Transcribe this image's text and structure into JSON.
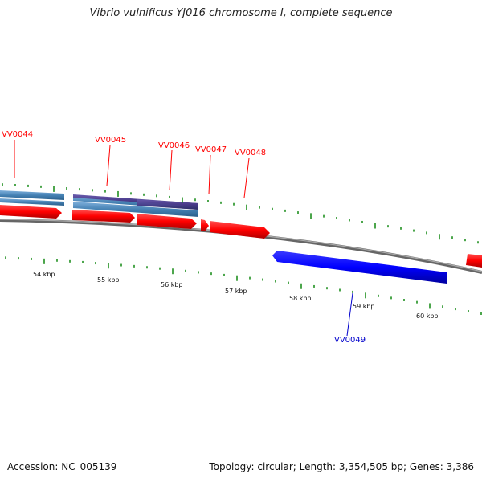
{
  "title": "Vibrio vulnificus YJ016 chromosome I, complete sequence",
  "footer": {
    "accession": "Accession: NC_005139",
    "summary": "Topology: circular; Length: 3,354,505 bp; Genes: 3,386"
  },
  "colors": {
    "forward_cds": "#ff0000",
    "reverse_cds": "#0000ff",
    "blue_feature": "#4682b4",
    "purple_feature": "#4b3c8c",
    "backbone": "#888888",
    "ticks": "#008000",
    "forward_label": "#ff0000",
    "reverse_label": "#0000cc"
  },
  "scale_labels": [
    "54 kbp",
    "55 kbp",
    "56 kbp",
    "57 kbp",
    "58 kbp",
    "59 kbp",
    "60 kbp"
  ],
  "genes": [
    {
      "label": "VV0044",
      "strand": "forward"
    },
    {
      "label": "VV0045",
      "strand": "forward"
    },
    {
      "label": "VV0046",
      "strand": "forward"
    },
    {
      "label": "VV0047",
      "strand": "forward"
    },
    {
      "label": "VV0048",
      "strand": "forward"
    },
    {
      "label": "VV0049",
      "strand": "reverse"
    }
  ]
}
